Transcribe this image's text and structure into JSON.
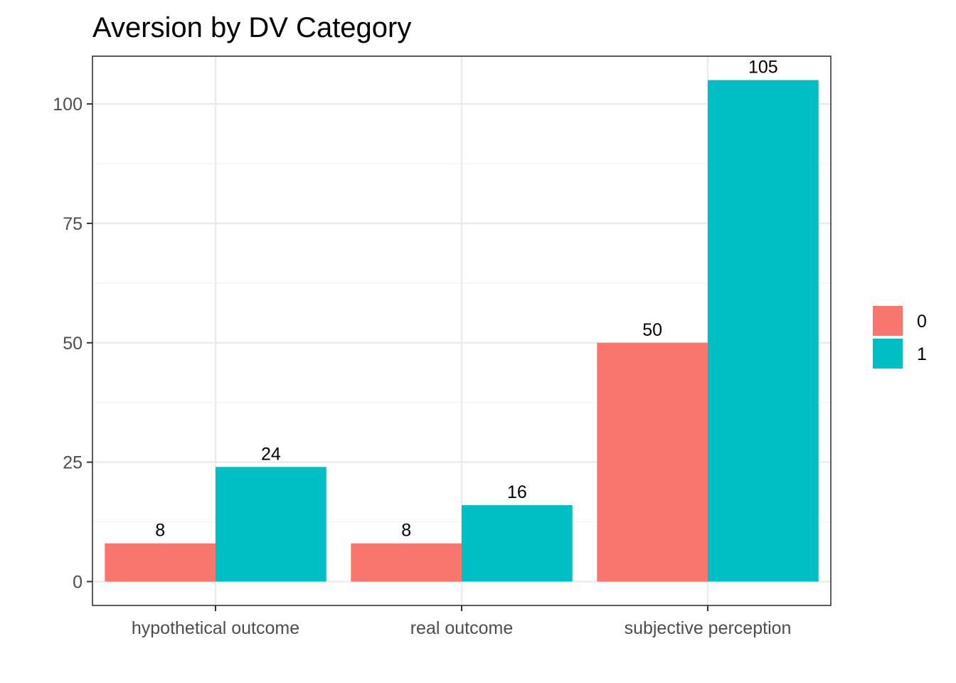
{
  "chart_data": {
    "type": "bar",
    "title": "Aversion by DV Category",
    "xlabel": "",
    "ylabel": "",
    "categories": [
      "hypothetical outcome",
      "real outcome",
      "subjective perception"
    ],
    "series": [
      {
        "name": "0",
        "color": "#F8766D",
        "values": [
          8,
          8,
          50
        ]
      },
      {
        "name": "1",
        "color": "#00BFC4",
        "values": [
          24,
          16,
          105
        ]
      }
    ],
    "ylim": [
      -5,
      110
    ],
    "yticks": [
      0,
      25,
      50,
      75,
      100
    ],
    "grid": true,
    "legend_position": "right",
    "data_labels": true
  }
}
